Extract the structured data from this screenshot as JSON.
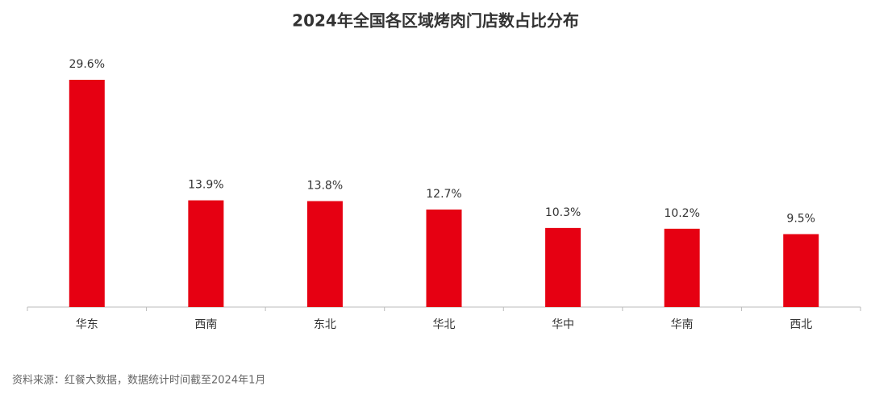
{
  "chart_data": {
    "type": "bar",
    "title": "2024年全国各区域烤肉门店数占比分布",
    "categories": [
      "华东",
      "西南",
      "东北",
      "华北",
      "华中",
      "华南",
      "西北"
    ],
    "values": [
      29.6,
      13.9,
      13.8,
      12.7,
      10.3,
      10.2,
      9.5
    ],
    "value_labels": [
      "29.6%",
      "13.9%",
      "13.8%",
      "12.7%",
      "10.3%",
      "10.2%",
      "9.5%"
    ],
    "color": "#e60012",
    "source": "资料来源：红餐大数据，数据统计时间截至2024年1月"
  }
}
